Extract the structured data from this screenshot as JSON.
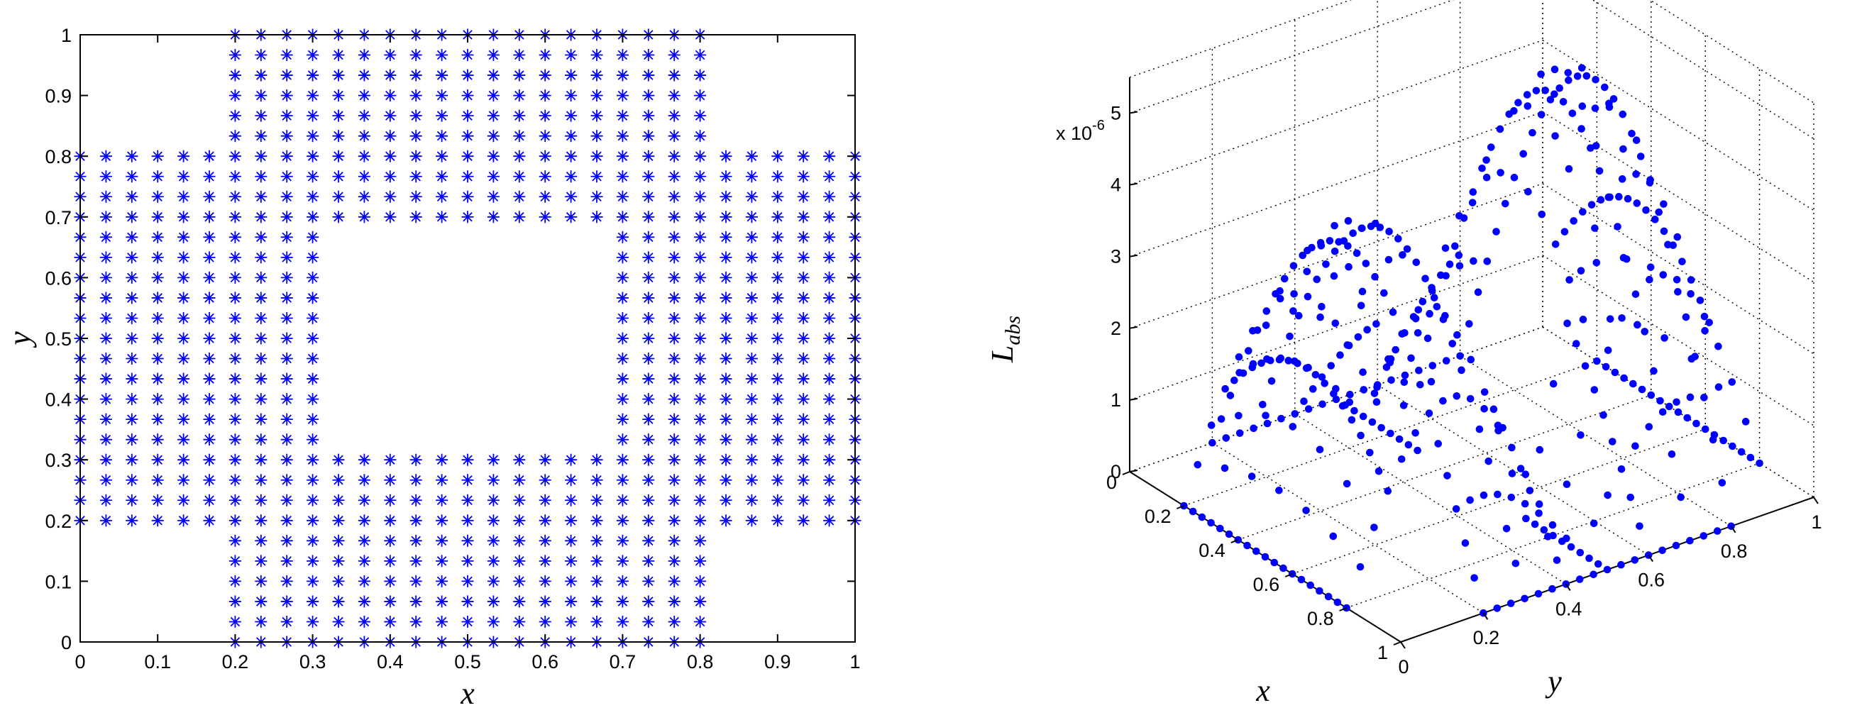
{
  "colors": {
    "marker": "#0000ff",
    "axes": "#000000"
  },
  "chart_data": [
    {
      "type": "scatter",
      "marker": "asterisk",
      "xlabel": "x",
      "ylabel": "y",
      "xlim": [
        0,
        1
      ],
      "ylim": [
        0,
        1
      ],
      "xticks": [
        "0",
        "0.1",
        "0.2",
        "0.3",
        "0.4",
        "0.5",
        "0.6",
        "0.7",
        "0.8",
        "0.9",
        "1"
      ],
      "yticks": [
        "0",
        "0.1",
        "0.2",
        "0.3",
        "0.4",
        "0.5",
        "0.6",
        "0.7",
        "0.8",
        "0.9",
        "1"
      ],
      "grid": false,
      "points": {
        "grid_spacing": 0.0333,
        "region": "cross-shaped domain with square hole",
        "arms": [
          {
            "x": [
              0.2,
              0.8
            ],
            "y": [
              0.0,
              1.0
            ]
          },
          {
            "x": [
              0.0,
              1.0
            ],
            "y": [
              0.2,
              0.8
            ]
          }
        ],
        "hole": {
          "x": [
            0.3,
            0.7
          ],
          "y": [
            0.3,
            0.7
          ]
        }
      }
    },
    {
      "type": "scatter3d",
      "marker": "dot",
      "xlabel": "x",
      "ylabel": "y",
      "zlabel": "L_abs",
      "zlabel_main": "L",
      "zlabel_sub": "abs",
      "z_exponent": "x 10",
      "z_exponent_power": "-6",
      "xlim": [
        0,
        1
      ],
      "ylim": [
        0,
        1
      ],
      "zlim": [
        0,
        5.5
      ],
      "xticks": [
        "0",
        "0.2",
        "0.4",
        "0.6",
        "0.8",
        "1"
      ],
      "yticks": [
        "0",
        "0.2",
        "0.4",
        "0.6",
        "0.8",
        "1"
      ],
      "zticks": [
        "0",
        "1",
        "2",
        "3",
        "4",
        "5"
      ],
      "grid": true,
      "points": {
        "domain": "same cross-shaped grid",
        "z_peak": 5.3,
        "z_at_boundary": 0
      }
    }
  ]
}
